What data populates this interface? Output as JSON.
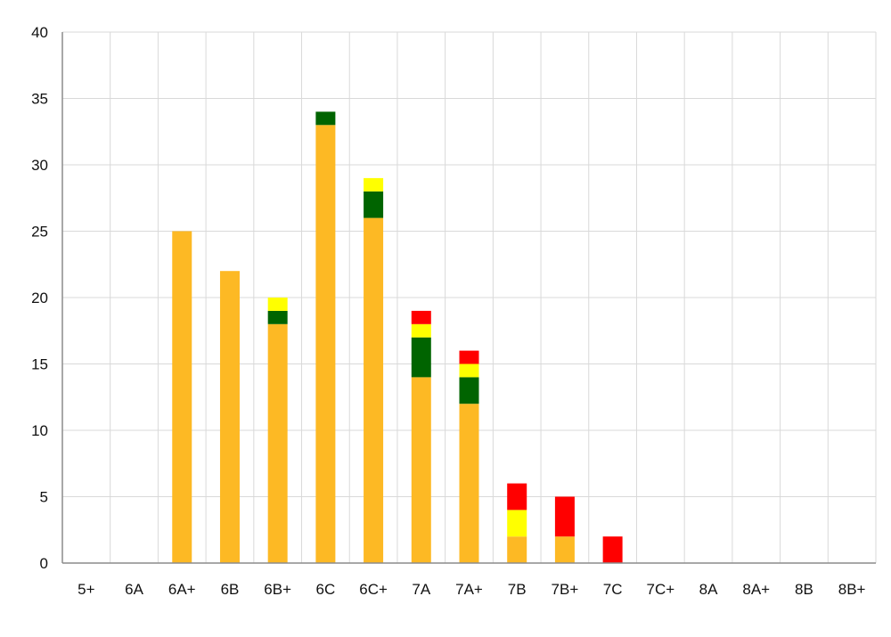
{
  "chart_data": {
    "type": "bar",
    "stacked": true,
    "title": "",
    "xlabel": "",
    "ylabel": "",
    "ylim": [
      0,
      40
    ],
    "y_ticks": [
      0,
      5,
      10,
      15,
      20,
      25,
      30,
      35,
      40
    ],
    "grid": true,
    "legend": "none",
    "categories": [
      "5+",
      "6A",
      "6A+",
      "6B",
      "6B+",
      "6C",
      "6C+",
      "7A",
      "7A+",
      "7B",
      "7B+",
      "7C",
      "7C+",
      "8A",
      "8A+",
      "8B",
      "8B+"
    ],
    "series": [
      {
        "color": "#FDB924",
        "values": [
          0,
          0,
          25,
          22,
          18,
          33,
          26,
          14,
          12,
          2,
          2,
          0,
          0,
          0,
          0,
          0,
          0
        ]
      },
      {
        "color": "#006400",
        "values": [
          0,
          0,
          0,
          0,
          1,
          1,
          2,
          3,
          2,
          0,
          0,
          0,
          0,
          0,
          0,
          0,
          0
        ]
      },
      {
        "color": "#FFFF00",
        "values": [
          0,
          0,
          0,
          0,
          1,
          0,
          1,
          1,
          1,
          2,
          0,
          0,
          0,
          0,
          0,
          0,
          0
        ]
      },
      {
        "color": "#FF0000",
        "values": [
          0,
          0,
          0,
          0,
          0,
          0,
          0,
          1,
          1,
          2,
          3,
          2,
          0,
          0,
          0,
          0,
          0
        ]
      }
    ]
  }
}
